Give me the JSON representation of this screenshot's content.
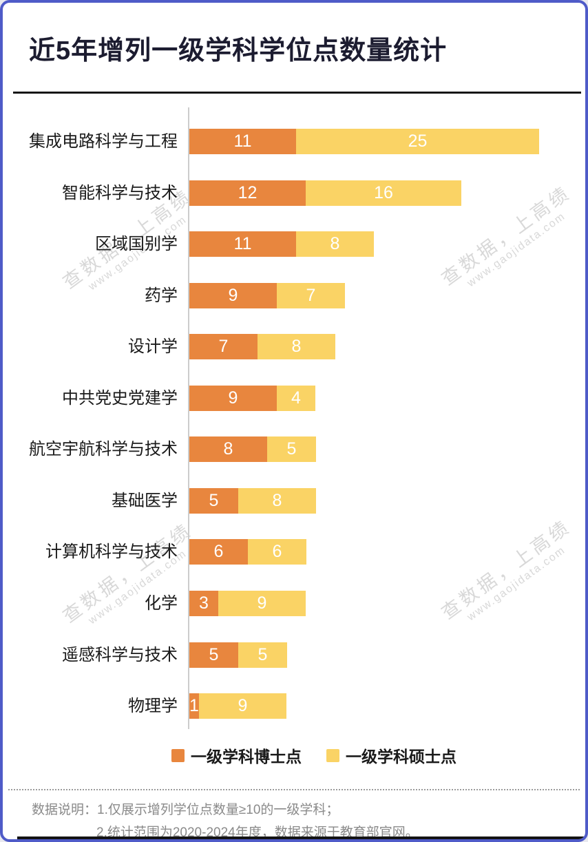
{
  "header": {
    "title": "近5年增列一级学科学位点数量统计",
    "title_color": "#1c1c30"
  },
  "chart_data": {
    "type": "bar",
    "orientation": "horizontal",
    "stacked": true,
    "title": "近5年增列一级学科学位点数量统计",
    "categories": [
      "集成电路科学与工程",
      "智能科学与技术",
      "区域国别学",
      "药学",
      "设计学",
      "中共党史党建学",
      "航空宇航科学与技术",
      "基础医学",
      "计算机科学与技术",
      "化学",
      "遥感科学与技术",
      "物理学"
    ],
    "series": [
      {
        "name": "一级学科博士点",
        "color": "#E8863E",
        "values": [
          11,
          12,
          11,
          9,
          7,
          9,
          8,
          5,
          6,
          3,
          5,
          1
        ]
      },
      {
        "name": "一级学科硕士点",
        "color": "#FAD365",
        "values": [
          25,
          16,
          8,
          7,
          8,
          4,
          5,
          8,
          6,
          9,
          5,
          9
        ]
      }
    ],
    "value_labels": "inside-white",
    "legend_position": "bottom",
    "grid": false,
    "axis_line_color": "#cccccc"
  },
  "footer": {
    "label": "数据说明：",
    "note1": "1.仅展示增列学位点数量≥10的一级学科；",
    "note2": "2.统计范围为2020-2024年度，数据来源于教育部官网。"
  },
  "watermark": {
    "text": "查数据，上高绩",
    "url": "www.gaojidata.com"
  },
  "colors": {
    "card_border": "#4f5bc8",
    "doctor_orange": "#E8863E",
    "master_yellow": "#FAD365",
    "watermark_gray": "#d8d8d8",
    "footer_gray": "#8a8a8a"
  }
}
